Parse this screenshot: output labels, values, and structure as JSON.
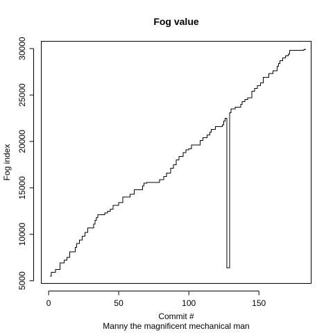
{
  "chart_data": {
    "type": "line",
    "title": "Fog value",
    "xlabel": "Commit #",
    "ylabel": "Fog index",
    "subtitle": "Manny the magnificent mechanical man",
    "xlim": [
      -5,
      187
    ],
    "ylim": [
      4750,
      30750
    ],
    "xticks": [
      0,
      50,
      100,
      150
    ],
    "yticks": [
      5000,
      10000,
      15000,
      20000,
      25000,
      30000
    ],
    "grid": false,
    "series": [
      {
        "line_style": "steps",
        "color": "#000000",
        "points": [
          [
            1,
            5500
          ],
          [
            2,
            5900
          ],
          [
            5,
            6200
          ],
          [
            8,
            6900
          ],
          [
            11,
            7200
          ],
          [
            13,
            7500
          ],
          [
            15,
            8100
          ],
          [
            19,
            8600
          ],
          [
            20,
            9000
          ],
          [
            22,
            9400
          ],
          [
            24,
            9800
          ],
          [
            26,
            10200
          ],
          [
            28,
            10700
          ],
          [
            32,
            11100
          ],
          [
            33,
            11500
          ],
          [
            34,
            11800
          ],
          [
            35,
            12100
          ],
          [
            40,
            12300
          ],
          [
            42,
            12500
          ],
          [
            44,
            12700
          ],
          [
            46,
            13100
          ],
          [
            50,
            13400
          ],
          [
            53,
            14000
          ],
          [
            58,
            14300
          ],
          [
            61,
            14800
          ],
          [
            67,
            15200
          ],
          [
            68,
            15500
          ],
          [
            70,
            15600
          ],
          [
            79,
            15900
          ],
          [
            82,
            16200
          ],
          [
            84,
            16600
          ],
          [
            87,
            17100
          ],
          [
            89,
            17500
          ],
          [
            91,
            18000
          ],
          [
            93,
            18400
          ],
          [
            96,
            18800
          ],
          [
            98,
            19100
          ],
          [
            100,
            19200
          ],
          [
            102,
            19600
          ],
          [
            108,
            20100
          ],
          [
            110,
            20400
          ],
          [
            113,
            20700
          ],
          [
            115,
            21000
          ],
          [
            116,
            21300
          ],
          [
            119,
            21600
          ],
          [
            124,
            21800
          ],
          [
            125,
            22200
          ],
          [
            126,
            22500
          ],
          [
            127,
            6400
          ],
          [
            129,
            23100
          ],
          [
            130,
            23500
          ],
          [
            133,
            23700
          ],
          [
            137,
            24000
          ],
          [
            138,
            24300
          ],
          [
            140,
            24500
          ],
          [
            142,
            24700
          ],
          [
            145,
            25400
          ],
          [
            147,
            25700
          ],
          [
            149,
            26000
          ],
          [
            151,
            26300
          ],
          [
            153,
            26900
          ],
          [
            157,
            27300
          ],
          [
            160,
            27600
          ],
          [
            163,
            28100
          ],
          [
            164,
            28400
          ],
          [
            165,
            28700
          ],
          [
            167,
            29000
          ],
          [
            169,
            29200
          ],
          [
            171,
            29400
          ],
          [
            172,
            29800
          ],
          [
            182,
            29900
          ],
          [
            183,
            30000
          ]
        ]
      }
    ]
  }
}
